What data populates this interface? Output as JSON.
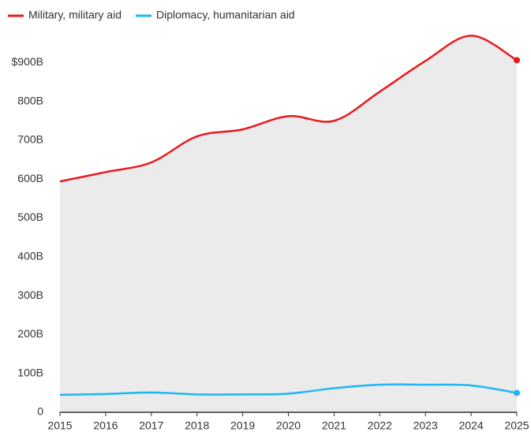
{
  "chart_data": {
    "type": "line",
    "x": [
      2015,
      2016,
      2017,
      2018,
      2019,
      2020,
      2021,
      2022,
      2023,
      2024,
      2025
    ],
    "xlim": [
      2015,
      2025
    ],
    "xticks": [
      2015,
      2016,
      2017,
      2018,
      2019,
      2020,
      2021,
      2022,
      2023,
      2024,
      2025
    ],
    "ylim": [
      0,
      1000
    ],
    "yticks": [
      0,
      {
        "value": 100,
        "label": "100B"
      },
      {
        "value": 200,
        "label": "200B"
      },
      {
        "value": 300,
        "label": "300B"
      },
      {
        "value": 400,
        "label": "400B"
      },
      {
        "value": 500,
        "label": "500B"
      },
      {
        "value": 600,
        "label": "600B"
      },
      {
        "value": 700,
        "label": "700B"
      },
      {
        "value": 800,
        "label": "800B"
      },
      {
        "value": 900,
        "label": "$900B"
      }
    ],
    "grid": false,
    "area_fill": "#ebebeb",
    "legend": "top-left",
    "series": [
      {
        "name": "Military, military aid",
        "color": "#e8191f",
        "values": [
          594,
          618,
          643,
          710,
          728,
          762,
          750,
          825,
          904,
          969,
          906
        ]
      },
      {
        "name": "Diplomacy, humanitarian aid",
        "color": "#1fb6f5",
        "values": [
          45,
          47,
          51,
          46,
          46,
          48,
          62,
          71,
          71,
          69,
          50
        ]
      }
    ]
  }
}
